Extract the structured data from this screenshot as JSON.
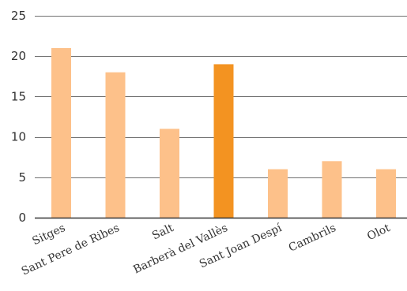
{
  "chart_data": {
    "type": "bar",
    "categories": [
      "Sitges",
      "Sant Pere de Ribes",
      "Salt",
      "Barberà del Vallès",
      "Sant Joan Despí",
      "Cambrils",
      "Olot"
    ],
    "values": [
      21,
      18,
      11,
      19,
      6,
      7,
      6
    ],
    "highlight_index": 3,
    "ylim": [
      0,
      25
    ],
    "yticks": [
      0,
      5,
      10,
      15,
      20,
      25
    ],
    "ytick_labels": [
      "0",
      "5",
      "10",
      "15",
      "20",
      "25"
    ],
    "grid": true,
    "title": "",
    "xlabel": "",
    "ylabel": "",
    "colors": {
      "bar": "#FDC18A",
      "highlight": "#F39321",
      "grid": "#6f6f6f",
      "text": "#333333"
    }
  }
}
